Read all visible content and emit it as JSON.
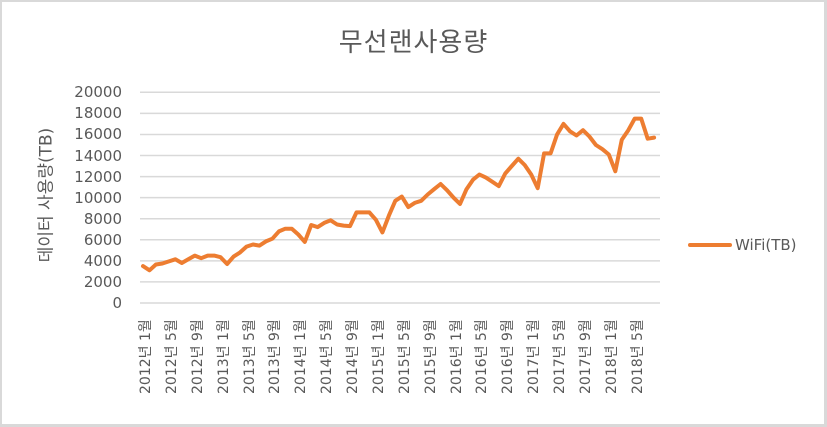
{
  "chart_data": {
    "type": "line",
    "title": "무선랜사용량",
    "xlabel": "",
    "ylabel": "데이터 사용량(TB)",
    "ylim": [
      0,
      20000
    ],
    "y_ticks": [
      "20000",
      "18000",
      "16000",
      "14000",
      "12000",
      "10000",
      "8000",
      "6000",
      "4000",
      "2000",
      "0"
    ],
    "x_tick_labels": [
      "2012년 1월",
      "2012년 5월",
      "2012년 9월",
      "2013년 1월",
      "2013년 5월",
      "2013년 9월",
      "2014년 1월",
      "2014년 5월",
      "2014년 9월",
      "2015년 1월",
      "2015년 5월",
      "2015년 9월",
      "2016년 1월",
      "2016년 5월",
      "2016년 9월",
      "2017년 1월",
      "2017년 5월",
      "2017년 9월",
      "2018년 1월",
      "2018년 5월"
    ],
    "grid": true,
    "legend_position": "right",
    "series": [
      {
        "name": "WiFi(TB)",
        "color": "#ed7d31",
        "start": "2012-01",
        "interval": "month",
        "values": [
          3500,
          3100,
          3650,
          3750,
          3950,
          4150,
          3800,
          4150,
          4500,
          4250,
          4500,
          4500,
          4350,
          3700,
          4400,
          4800,
          5350,
          5550,
          5450,
          5850,
          6100,
          6800,
          7050,
          7050,
          6500,
          5800,
          7400,
          7200,
          7600,
          7850,
          7450,
          7350,
          7300,
          8600,
          8600,
          8600,
          7900,
          6700,
          8300,
          9700,
          10100,
          9100,
          9500,
          9700,
          10300,
          10800,
          11300,
          10700,
          10000,
          9400,
          10800,
          11700,
          12200,
          11900,
          11500,
          11100,
          12300,
          13000,
          13700,
          13100,
          12200,
          10900,
          14200,
          14200,
          16000,
          17000,
          16300,
          15900,
          16400,
          15800,
          15000,
          14600,
          14100,
          12500,
          15500,
          16400,
          17500,
          17500,
          15600,
          15700
        ]
      }
    ]
  },
  "legend": {
    "label": "WiFi(TB)"
  }
}
